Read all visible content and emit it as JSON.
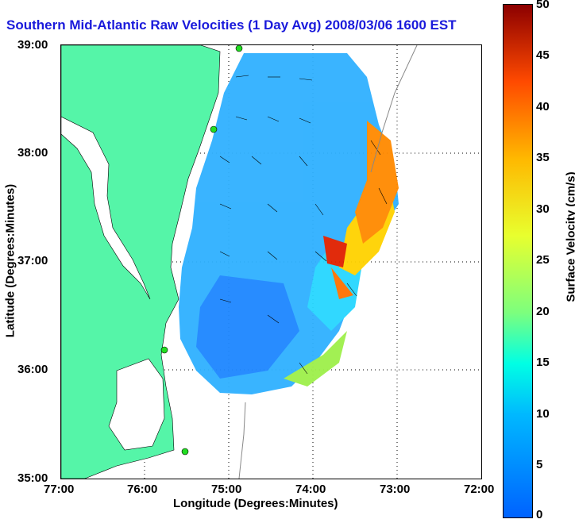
{
  "title": "Southern Mid-Atlantic Raw Velocities (1 Day Avg) 2008/03/06 1600 EST",
  "axes": {
    "xlabel": "Longitude (Degrees:Minutes)",
    "ylabel": "Latitude (Degrees:Minutes)",
    "x_ticks": [
      "77:00",
      "76:00",
      "75:00",
      "74:00",
      "73:00",
      "72:00"
    ],
    "y_ticks": [
      "39:00",
      "38:00",
      "37:00",
      "36:00",
      "35:00"
    ]
  },
  "colorbar": {
    "label": "Surface Velocity (cm/s)",
    "ticks": [
      "50",
      "45",
      "40",
      "35",
      "30",
      "25",
      "20",
      "15",
      "10",
      "5",
      "0"
    ]
  },
  "colors": {
    "land": "#55f5a8",
    "title": "#1a1adb",
    "sites": "#22dd22"
  }
}
